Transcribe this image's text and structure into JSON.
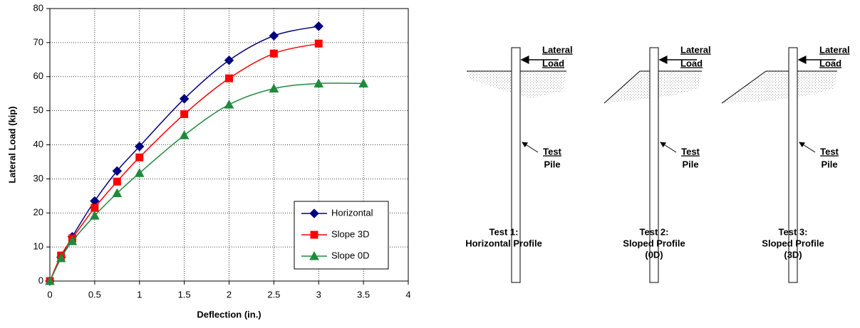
{
  "chart_data": {
    "type": "line",
    "x_label": "Deflection (in.)",
    "y_label": "Lateral Load (kip)",
    "xlim": [
      0,
      4
    ],
    "xticks": [
      0,
      0.5,
      1,
      1.5,
      2,
      2.5,
      3,
      3.5,
      4
    ],
    "ylim": [
      0,
      80
    ],
    "yticks": [
      0,
      10,
      20,
      30,
      40,
      50,
      60,
      70,
      80
    ],
    "grid": true,
    "legend": "lower right",
    "series": [
      {
        "name": "Horizontal",
        "color": "#000080",
        "marker": "diamond",
        "x": [
          0,
          0.125,
          0.25,
          0.5,
          0.75,
          1,
          1.5,
          2,
          2.5,
          3
        ],
        "values": [
          0,
          7,
          13,
          23.5,
          32.3,
          39.5,
          53.5,
          64.8,
          72,
          74.8
        ]
      },
      {
        "name": "Slope 3D",
        "color": "#ff0000",
        "marker": "square",
        "x": [
          0,
          0.125,
          0.25,
          0.5,
          0.75,
          1,
          1.5,
          2,
          2.5,
          3
        ],
        "values": [
          0,
          7.5,
          12.5,
          21.5,
          29.2,
          36.3,
          49,
          59.5,
          66.8,
          69.7
        ]
      },
      {
        "name": "Slope 0D",
        "color": "#1e8b3c",
        "marker": "triangle",
        "x": [
          0,
          0.125,
          0.25,
          0.5,
          0.75,
          1,
          1.5,
          2,
          2.5,
          3,
          3.5
        ],
        "values": [
          0,
          6.7,
          11.7,
          19.2,
          25.8,
          31.7,
          42.8,
          51.8,
          56.5,
          58,
          58
        ]
      }
    ]
  },
  "panels": [
    {
      "load_label": [
        "Lateral",
        "Load"
      ],
      "pile_label": [
        "Test",
        "Pile"
      ],
      "caption": [
        "Test 1:",
        "Horizontal Profile"
      ]
    },
    {
      "load_label": [
        "Lateral",
        "Load"
      ],
      "pile_label": [
        "Test",
        "Pile"
      ],
      "caption": [
        "Test 2:",
        "Sloped Profile",
        "(0D)"
      ]
    },
    {
      "load_label": [
        "Lateral",
        "Load"
      ],
      "pile_label": [
        "Test",
        "Pile"
      ],
      "caption": [
        "Test 3:",
        "Sloped Profile",
        "(3D)"
      ]
    }
  ]
}
